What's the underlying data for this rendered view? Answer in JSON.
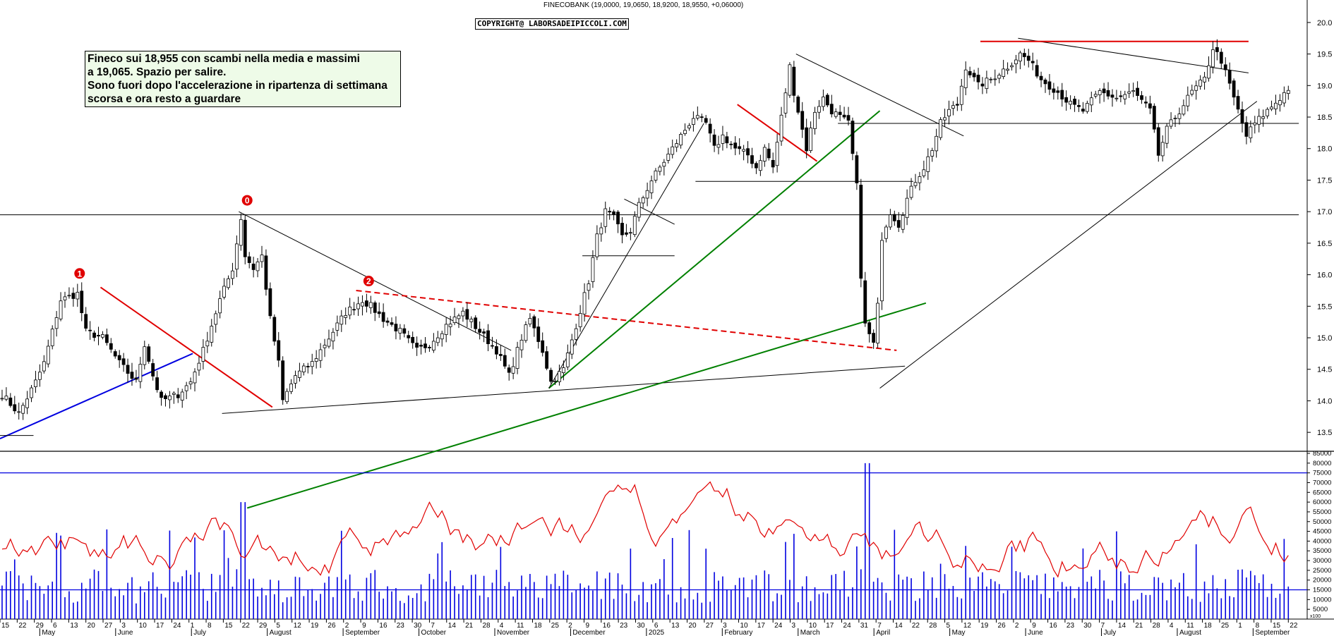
{
  "header": {
    "ticker_line": "FINECOBANK (19,0000, 19,0650, 18,9200, 18,9550, +0,06000)",
    "copyright": "COPYRIGHT@ LABORSADEIPICCOLI.COM"
  },
  "note": {
    "lines": [
      "Fineco sui 18,955 con scambi nella media e massimi",
      "a 19,065. Spazio per salire.",
      "Sono fuori dopo l'accelerazione in ripartenza di settimana",
      "scorsa e ora resto a guardare"
    ]
  },
  "chart_data": [
    {
      "type": "ohlc",
      "title": "FINECOBANK (19,0000, 19,0650, 18,9200, 18,9550, +0,06000)",
      "ylim": [
        13.2,
        20.2
      ],
      "y_ticks": [
        "13.5",
        "14.0",
        "14.5",
        "15.0",
        "15.5",
        "16.0",
        "16.5",
        "17.0",
        "17.5",
        "18.0",
        "18.5",
        "19.0",
        "19.5",
        "20.0"
      ],
      "month_labels": [
        "May",
        "June",
        "July",
        "August",
        "September",
        "October",
        "November",
        "December",
        "2025",
        "February",
        "March",
        "April",
        "May",
        "June",
        "July",
        "August",
        "September"
      ],
      "day_ticks": [
        "15",
        "22",
        "29",
        "6",
        "13",
        "20",
        "27",
        "3",
        "10",
        "17",
        "24",
        "1",
        "8",
        "15",
        "22",
        "29",
        "5",
        "12",
        "19",
        "26",
        "2",
        "9",
        "16",
        "23",
        "30",
        "7",
        "14",
        "21",
        "28",
        "4",
        "11",
        "18",
        "25",
        "2",
        "9",
        "16",
        "23",
        "30",
        "6",
        "13",
        "20",
        "27",
        "3",
        "10",
        "17",
        "24",
        "3",
        "10",
        "17",
        "24",
        "31",
        "7",
        "14",
        "22",
        "28",
        "5",
        "12",
        "19",
        "26",
        "2",
        "9",
        "16",
        "23",
        "30",
        "7",
        "14",
        "21",
        "28",
        "4",
        "11",
        "18",
        "25",
        "1",
        "8",
        "15",
        "22"
      ],
      "close_path": [
        [
          0,
          14.1
        ],
        [
          4,
          13.8
        ],
        [
          8,
          14.3
        ],
        [
          10,
          14.6
        ],
        [
          14,
          15.6
        ],
        [
          18,
          15.7
        ],
        [
          20,
          15.1
        ],
        [
          24,
          15.0
        ],
        [
          28,
          14.6
        ],
        [
          32,
          14.3
        ],
        [
          34,
          14.9
        ],
        [
          36,
          14.4
        ],
        [
          38,
          14.0
        ],
        [
          42,
          14.1
        ],
        [
          45,
          14.3
        ],
        [
          48,
          14.8
        ],
        [
          52,
          15.6
        ],
        [
          55,
          16.1
        ],
        [
          57,
          16.9
        ],
        [
          58,
          16.3
        ],
        [
          60,
          16.1
        ],
        [
          62,
          16.3
        ],
        [
          64,
          15.3
        ],
        [
          66,
          14.6
        ],
        [
          67,
          14.0
        ],
        [
          70,
          14.4
        ],
        [
          74,
          14.6
        ],
        [
          78,
          15.0
        ],
        [
          82,
          15.4
        ],
        [
          86,
          15.6
        ],
        [
          88,
          15.5
        ],
        [
          91,
          15.3
        ],
        [
          95,
          15.1
        ],
        [
          99,
          14.8
        ],
        [
          102,
          14.9
        ],
        [
          106,
          15.2
        ],
        [
          110,
          15.4
        ],
        [
          114,
          15.1
        ],
        [
          118,
          14.8
        ],
        [
          121,
          14.4
        ],
        [
          124,
          15.0
        ],
        [
          126,
          15.3
        ],
        [
          129,
          14.8
        ],
        [
          131,
          14.3
        ],
        [
          134,
          14.5
        ],
        [
          137,
          15.2
        ],
        [
          140,
          15.9
        ],
        [
          142,
          16.6
        ],
        [
          144,
          17.0
        ],
        [
          146,
          16.9
        ],
        [
          148,
          16.6
        ],
        [
          150,
          16.7
        ],
        [
          152,
          17.1
        ],
        [
          155,
          17.5
        ],
        [
          158,
          17.8
        ],
        [
          162,
          18.2
        ],
        [
          165,
          18.5
        ],
        [
          168,
          18.4
        ],
        [
          170,
          18.0
        ],
        [
          172,
          18.2
        ],
        [
          175,
          18.0
        ],
        [
          178,
          17.9
        ],
        [
          180,
          17.7
        ],
        [
          182,
          18.0
        ],
        [
          184,
          17.7
        ],
        [
          186,
          18.5
        ],
        [
          188,
          19.3
        ],
        [
          189,
          18.9
        ],
        [
          192,
          18.0
        ],
        [
          194,
          18.6
        ],
        [
          196,
          18.8
        ],
        [
          198,
          18.6
        ],
        [
          202,
          18.4
        ],
        [
          204,
          17.4
        ],
        [
          205,
          16.0
        ],
        [
          206,
          15.2
        ],
        [
          208,
          14.9
        ],
        [
          209,
          15.5
        ],
        [
          210,
          16.6
        ],
        [
          212,
          17.0
        ],
        [
          214,
          16.8
        ],
        [
          216,
          17.2
        ],
        [
          218,
          17.5
        ],
        [
          220,
          17.7
        ],
        [
          222,
          18.0
        ],
        [
          224,
          18.4
        ],
        [
          226,
          18.6
        ],
        [
          228,
          18.7
        ],
        [
          230,
          19.3
        ],
        [
          233,
          19.0
        ],
        [
          236,
          19.1
        ],
        [
          240,
          19.3
        ],
        [
          243,
          19.5
        ],
        [
          245,
          19.4
        ],
        [
          248,
          19.1
        ],
        [
          252,
          18.9
        ],
        [
          255,
          18.7
        ],
        [
          258,
          18.6
        ],
        [
          262,
          18.9
        ],
        [
          266,
          18.8
        ],
        [
          270,
          18.9
        ],
        [
          274,
          18.6
        ],
        [
          276,
          17.9
        ],
        [
          278,
          18.3
        ],
        [
          281,
          18.6
        ],
        [
          284,
          18.9
        ],
        [
          287,
          19.1
        ],
        [
          289,
          19.6
        ],
        [
          291,
          19.4
        ],
        [
          293,
          19.0
        ],
        [
          295,
          18.6
        ],
        [
          297,
          18.2
        ],
        [
          299,
          18.4
        ],
        [
          302,
          18.6
        ],
        [
          305,
          18.8
        ],
        [
          307,
          18.955
        ]
      ],
      "lines": [
        {
          "name": "1",
          "kind": "trend",
          "color": "#e00000",
          "from": [
            24,
            15.8
          ],
          "to": [
            65,
            13.9
          ]
        },
        {
          "name": "0",
          "kind": "trend",
          "color": "#000000",
          "from": [
            57,
            17.0
          ],
          "to": [
            122,
            14.8
          ]
        },
        {
          "name": "2",
          "kind": "trend",
          "color": "#e00000",
          "dashed": true,
          "from": [
            85,
            15.75
          ],
          "to": [
            214,
            14.8
          ]
        },
        {
          "kind": "trend",
          "color": "#0000e0",
          "from": [
            0,
            13.4
          ],
          "to": [
            46,
            14.75
          ]
        },
        {
          "kind": "trend",
          "color": "#000000",
          "from": [
            53,
            13.8
          ],
          "to": [
            216,
            14.55
          ]
        },
        {
          "kind": "trend",
          "color": "#008000",
          "from": [
            59,
            12.3
          ],
          "to": [
            221,
            15.55
          ]
        },
        {
          "kind": "trend",
          "color": "#008000",
          "from": [
            131,
            14.2
          ],
          "to": [
            210,
            18.6
          ]
        },
        {
          "kind": "trend",
          "color": "#000000",
          "from": [
            131,
            14.2
          ],
          "to": [
            168,
            18.4
          ]
        },
        {
          "kind": "trend",
          "color": "#000000",
          "from": [
            149,
            17.2
          ],
          "to": [
            161,
            16.8
          ]
        },
        {
          "kind": "trend",
          "color": "#e00000",
          "from": [
            176,
            18.7
          ],
          "to": [
            195,
            17.8
          ]
        },
        {
          "kind": "trend",
          "color": "#000000",
          "from": [
            190,
            19.5
          ],
          "to": [
            230,
            18.2
          ]
        },
        {
          "kind": "trend",
          "color": "#000000",
          "from": [
            210,
            14.2
          ],
          "to": [
            300,
            18.75
          ]
        },
        {
          "kind": "trend",
          "color": "#000000",
          "from": [
            243,
            19.75
          ],
          "to": [
            298,
            19.2
          ]
        },
        {
          "kind": "hline",
          "color": "#e00000",
          "y": 19.7,
          "from": 234,
          "to": 298
        },
        {
          "kind": "hline",
          "color": "#000000",
          "y": 18.4,
          "from": 200,
          "to": 310
        },
        {
          "kind": "hline",
          "color": "#000000",
          "y": 17.48,
          "from": 166,
          "to": 218
        },
        {
          "kind": "hline",
          "color": "#000000",
          "y": 16.3,
          "from": 139,
          "to": 161
        },
        {
          "kind": "hline",
          "color": "#000000",
          "y": 16.95,
          "from": 0,
          "to": 310
        },
        {
          "kind": "hline",
          "color": "#000000",
          "y": 13.45,
          "from": 0,
          "to": 8
        }
      ],
      "labels": [
        {
          "text": "1",
          "x": 19,
          "y": 16.02
        },
        {
          "text": "0",
          "x": 59,
          "y": 17.18
        },
        {
          "text": "2",
          "x": 88,
          "y": 15.9
        }
      ]
    },
    {
      "type": "bar+line",
      "series": [
        {
          "kind": "volume bars",
          "color": "#0000e0"
        },
        {
          "kind": "oscillator line",
          "color": "#e00000"
        }
      ],
      "ylim": [
        0,
        85000
      ],
      "y_ticks": [
        "5000",
        "10000",
        "15000",
        "20000",
        "25000",
        "30000",
        "35000",
        "40000",
        "45000",
        "50000",
        "55000",
        "60000",
        "65000",
        "70000",
        "75000",
        "80000",
        "85000"
      ],
      "hlines": [
        15000,
        75000
      ],
      "axis_unit_label": "x100"
    }
  ]
}
